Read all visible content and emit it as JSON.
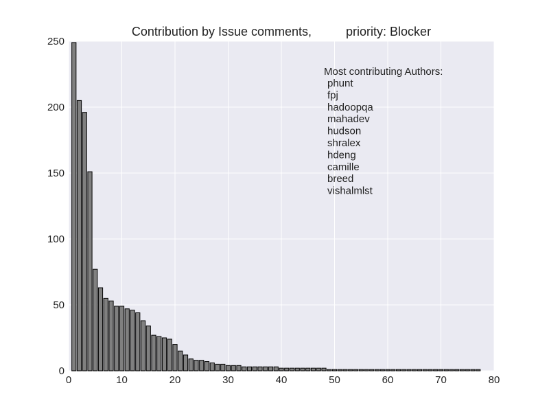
{
  "chart_data": {
    "type": "bar",
    "title": "Contribution by Issue comments,          priority: Blocker",
    "xlabel": "",
    "ylabel": "",
    "xlim": [
      0,
      80
    ],
    "ylim": [
      0,
      250
    ],
    "xticks": [
      "0",
      "10",
      "20",
      "30",
      "40",
      "50",
      "60",
      "70",
      "80"
    ],
    "yticks": [
      "0",
      "50",
      "100",
      "150",
      "200",
      "250"
    ],
    "grid": true,
    "colors": {
      "bar": "#808080",
      "bar_edge": "#000000",
      "plot_bg": "#eaeaf2",
      "grid": "#ffffff"
    },
    "values": [
      249,
      205,
      196,
      151,
      77,
      63,
      55,
      53,
      49,
      49,
      47,
      46,
      44,
      38,
      34,
      27,
      26,
      25,
      24,
      20,
      15,
      12,
      9,
      8,
      8,
      7,
      6,
      5,
      5,
      4,
      4,
      4,
      3,
      3,
      3,
      3,
      3,
      3,
      3,
      2,
      2,
      2,
      2,
      2,
      2,
      2,
      2,
      2,
      1,
      1,
      1,
      1,
      1,
      1,
      1,
      1,
      1,
      1,
      1,
      1,
      1,
      1,
      1,
      1,
      1,
      1,
      1,
      1,
      1,
      1,
      1,
      1,
      1,
      1,
      1,
      1,
      1
    ],
    "annotation": {
      "heading": "Most contributing Authors:",
      "authors": [
        "phunt",
        "fpj",
        "hadoopqa",
        "mahadev",
        "hudson",
        "shralex",
        "hdeng",
        "camille",
        "breed",
        "vishalmlst"
      ]
    }
  }
}
